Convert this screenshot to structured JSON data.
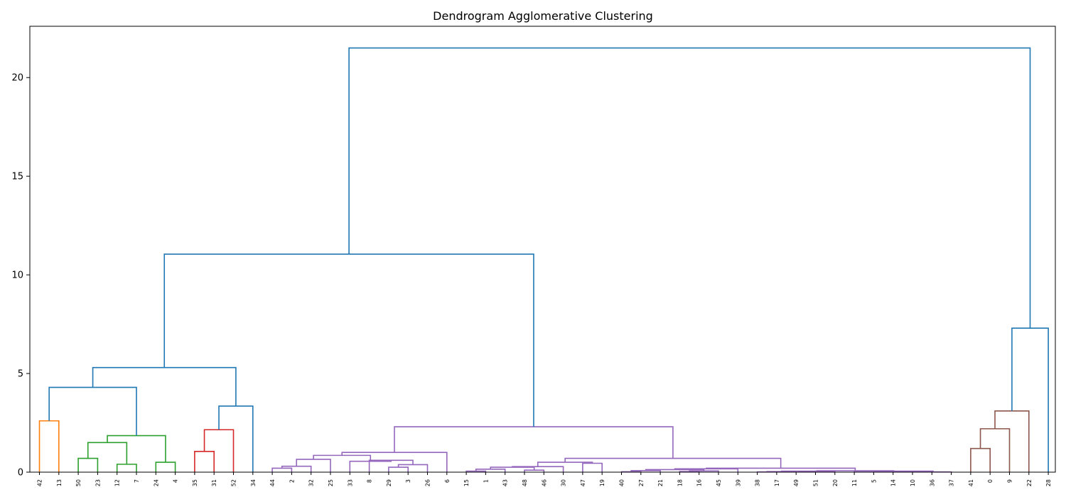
{
  "chart_data": {
    "type": "dendrogram",
    "title": "Dendrogram Agglomerative Clustering",
    "xlabel": "",
    "ylabel": "",
    "ylim": [
      0,
      22.6
    ],
    "yticks": [
      0,
      5,
      10,
      15,
      20
    ],
    "grid": false,
    "leaves": [
      "42",
      "13",
      "50",
      "23",
      "12",
      "7",
      "24",
      "4",
      "35",
      "31",
      "52",
      "34",
      "44",
      "2",
      "32",
      "25",
      "33",
      "8",
      "29",
      "3",
      "26",
      "6",
      "15",
      "1",
      "43",
      "48",
      "46",
      "30",
      "47",
      "19",
      "40",
      "27",
      "21",
      "18",
      "16",
      "45",
      "39",
      "38",
      "17",
      "49",
      "51",
      "20",
      "11",
      "5",
      "14",
      "10",
      "36",
      "37",
      "41",
      "0",
      "9",
      "22",
      "28"
    ],
    "colors": {
      "orange": "#ff7f0e",
      "green": "#2ca02c",
      "red": "#d62728",
      "purple": "#9467bd",
      "brown": "#8c564b",
      "blue": "#1f77b4"
    },
    "merges": [
      {
        "left": "42",
        "right": "13",
        "height": 2.6,
        "color": "orange"
      },
      {
        "left": "50",
        "right": "23",
        "height": 0.7,
        "color": "green"
      },
      {
        "left": "12",
        "right": "7",
        "height": 0.4,
        "color": "green"
      },
      {
        "left": "m2",
        "right": "m3",
        "height": 1.5,
        "color": "green"
      },
      {
        "left": "24",
        "right": "4",
        "height": 0.5,
        "color": "green"
      },
      {
        "left": "m4",
        "right": "m5",
        "height": 1.85,
        "color": "green"
      },
      {
        "left": "m1",
        "right": "m6",
        "height": 4.3,
        "color": "blue"
      },
      {
        "left": "35",
        "right": "31",
        "height": 1.05,
        "color": "red"
      },
      {
        "left": "m8",
        "right": "52",
        "height": 2.15,
        "color": "red"
      },
      {
        "left": "m9",
        "right": "34",
        "height": 3.35,
        "color": "blue"
      },
      {
        "left": "m7",
        "right": "m10",
        "height": 5.3,
        "color": "blue"
      },
      {
        "left": "44",
        "right": "2",
        "height": 0.2,
        "color": "purple"
      },
      {
        "left": "m12",
        "right": "32",
        "height": 0.3,
        "color": "purple"
      },
      {
        "left": "m13",
        "right": "25",
        "height": 0.65,
        "color": "purple"
      },
      {
        "left": "29",
        "right": "3",
        "height": 0.25,
        "color": "purple"
      },
      {
        "left": "m15",
        "right": "26",
        "height": 0.38,
        "color": "purple"
      },
      {
        "left": "8",
        "right": "m16",
        "height": 0.6,
        "color": "purple"
      },
      {
        "left": "33",
        "right": "m17",
        "height": 0.55,
        "color": "purple"
      },
      {
        "left": "m14",
        "right": "m18",
        "height": 0.85,
        "color": "purple"
      },
      {
        "left": "m19",
        "right": "6",
        "height": 1.0,
        "color": "purple"
      },
      {
        "left": "15",
        "right": "1",
        "height": 0.05,
        "color": "purple"
      },
      {
        "left": "m21",
        "right": "43",
        "height": 0.15,
        "color": "purple"
      },
      {
        "left": "48",
        "right": "46",
        "height": 0.1,
        "color": "purple"
      },
      {
        "left": "m22",
        "right": "m23",
        "height": 0.25,
        "color": "purple"
      },
      {
        "left": "m24",
        "right": "30",
        "height": 0.28,
        "color": "purple"
      },
      {
        "left": "47",
        "right": "19",
        "height": 0.45,
        "color": "purple"
      },
      {
        "left": "m25",
        "right": "m26",
        "height": 0.5,
        "color": "purple"
      },
      {
        "left": "40",
        "right": "27",
        "height": 0.02,
        "color": "purple"
      },
      {
        "left": "m28",
        "right": "21",
        "height": 0.08,
        "color": "purple"
      },
      {
        "left": "18",
        "right": "16",
        "height": 0.03,
        "color": "purple"
      },
      {
        "left": "m30",
        "right": "45",
        "height": 0.06,
        "color": "purple"
      },
      {
        "left": "m29",
        "right": "m31",
        "height": 0.13,
        "color": "purple"
      },
      {
        "left": "m32",
        "right": "39",
        "height": 0.17,
        "color": "purple"
      },
      {
        "left": "38",
        "right": "17",
        "height": 0.01,
        "color": "purple"
      },
      {
        "left": "m34",
        "right": "49",
        "height": 0.03,
        "color": "purple"
      },
      {
        "left": "m35",
        "right": "51",
        "height": 0.05,
        "color": "purple"
      },
      {
        "left": "m36",
        "right": "20",
        "height": 0.04,
        "color": "purple"
      },
      {
        "left": "5",
        "right": "14",
        "height": 0.02,
        "color": "purple"
      },
      {
        "left": "m38",
        "right": "10",
        "height": 0.03,
        "color": "purple"
      },
      {
        "left": "m39",
        "right": "36",
        "height": 0.02,
        "color": "purple"
      },
      {
        "left": "m40",
        "right": "37",
        "height": 0.01,
        "color": "purple"
      },
      {
        "left": "11",
        "right": "m41",
        "height": 0.05,
        "color": "purple"
      },
      {
        "left": "m37",
        "right": "m42",
        "height": 0.07,
        "color": "purple"
      },
      {
        "left": "m33",
        "right": "m43",
        "height": 0.2,
        "color": "purple"
      },
      {
        "left": "m27",
        "right": "m44",
        "height": 0.7,
        "color": "purple"
      },
      {
        "left": "m20",
        "right": "m45",
        "height": 2.3,
        "color": "purple"
      },
      {
        "left": "m11",
        "right": "m46",
        "height": 11.05,
        "color": "blue"
      },
      {
        "left": "41",
        "right": "0",
        "height": 1.2,
        "color": "brown"
      },
      {
        "left": "m48",
        "right": "9",
        "height": 2.2,
        "color": "brown"
      },
      {
        "left": "m49",
        "right": "22",
        "height": 3.1,
        "color": "brown"
      },
      {
        "left": "m50",
        "right": "28",
        "height": 7.3,
        "color": "blue"
      },
      {
        "left": "m47",
        "right": "m51",
        "height": 21.5,
        "color": "blue"
      }
    ]
  }
}
